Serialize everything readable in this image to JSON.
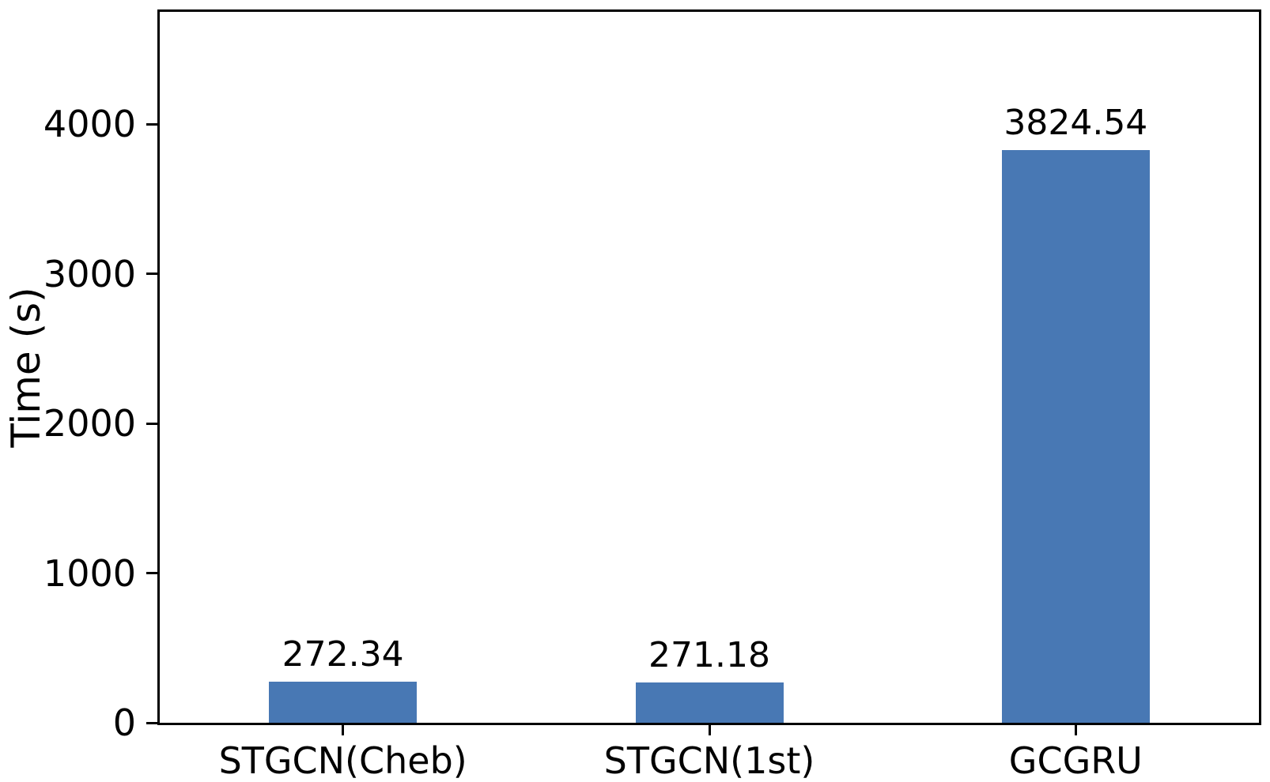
{
  "chart_data": {
    "type": "bar",
    "title": "",
    "categories": [
      "STGCN(Cheb)",
      "STGCN(1st)",
      "GCGRU"
    ],
    "values": [
      272.34,
      271.18,
      3824.54
    ],
    "value_labels": [
      "272.34",
      "271.18",
      "3824.54"
    ],
    "xlabel": "",
    "ylabel": "Time (s)",
    "yticks": [
      0,
      1000,
      2000,
      3000,
      4000
    ],
    "ytick_labels": [
      "0",
      "1000",
      "2000",
      "3000",
      "4000"
    ],
    "ylim": [
      0,
      4750
    ],
    "bar_color": "#4878b4",
    "axis_color": "#000000",
    "grid": false,
    "legend": null
  }
}
